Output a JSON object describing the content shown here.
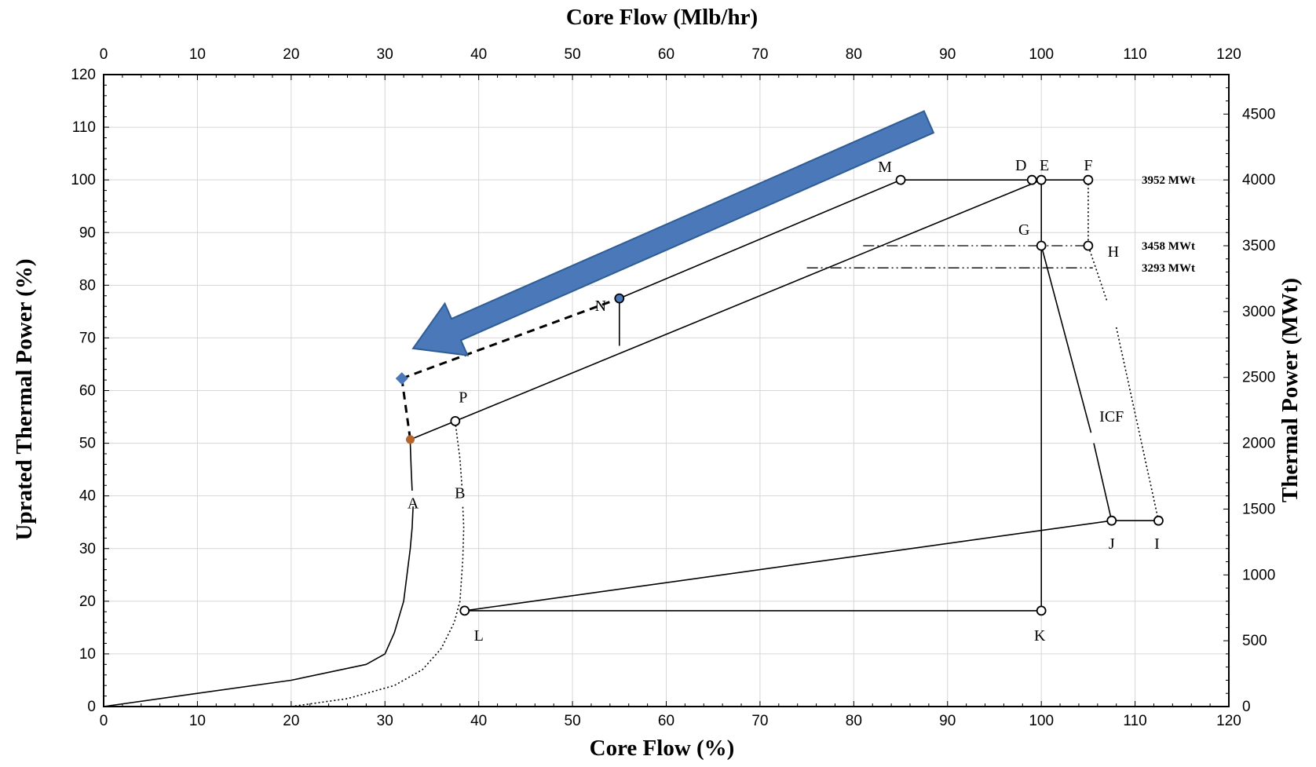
{
  "chart_data": {
    "type": "line",
    "xlabel": "Core Flow (%)",
    "x2label": "Core Flow (Mlb/hr)",
    "ylabel": "Uprated Thermal Power (%)",
    "y2label": "Thermal Power (MWt)",
    "xlim": [
      0,
      120
    ],
    "ylim": [
      0,
      120
    ],
    "x2lim": [
      0,
      120
    ],
    "y2lim": [
      0,
      4800
    ],
    "x_ticks": [
      "0",
      "10",
      "20",
      "30",
      "40",
      "50",
      "60",
      "70",
      "80",
      "90",
      "100",
      "110",
      "120"
    ],
    "y_ticks": [
      "0",
      "10",
      "20",
      "30",
      "40",
      "50",
      "60",
      "70",
      "80",
      "90",
      "100",
      "110",
      "120"
    ],
    "x2_ticks": [
      "0",
      "10",
      "20",
      "30",
      "40",
      "50",
      "60",
      "70",
      "80",
      "90",
      "100",
      "110",
      "120"
    ],
    "y2_ticks": [
      "0",
      "500",
      "1000",
      "1500",
      "2000",
      "2500",
      "3000",
      "3500",
      "4000",
      "4500"
    ],
    "grid": true,
    "series": [
      {
        "style": "solid",
        "points": [
          [
            0,
            0
          ],
          [
            10,
            2.5
          ],
          [
            20,
            5
          ],
          [
            28,
            8
          ],
          [
            30,
            10
          ],
          [
            31,
            14
          ],
          [
            32,
            20
          ],
          [
            32.7,
            30
          ],
          [
            32.9,
            34
          ],
          [
            33,
            38
          ]
        ]
      },
      {
        "style": "solid",
        "points": [
          [
            32.9,
            41
          ],
          [
            32.8,
            45
          ],
          [
            32.7,
            50
          ]
        ]
      },
      {
        "style": "dotted",
        "points": [
          [
            20,
            0
          ],
          [
            26,
            1.5
          ],
          [
            31,
            4
          ],
          [
            34,
            7
          ],
          [
            36,
            11
          ],
          [
            37.4,
            16
          ],
          [
            38,
            20
          ],
          [
            38.3,
            28
          ],
          [
            38.4,
            34
          ],
          [
            38.3,
            38
          ]
        ]
      },
      {
        "style": "dotted",
        "points": [
          [
            38.2,
            42
          ],
          [
            38,
            47
          ],
          [
            37.5,
            54
          ]
        ]
      },
      {
        "style": "solid",
        "points": [
          [
            32.7,
            50.7
          ],
          [
            37.5,
            54.2
          ],
          [
            100,
            100
          ]
        ]
      },
      {
        "style": "solid",
        "points": [
          [
            55,
            77.5
          ],
          [
            85,
            100
          ],
          [
            100,
            100
          ],
          [
            105,
            100
          ]
        ]
      },
      {
        "style": "solid",
        "points": [
          [
            55,
            77.5
          ],
          [
            55,
            68.5
          ]
        ]
      },
      {
        "style": "solid",
        "points": [
          [
            100,
            100
          ],
          [
            100,
            87.5
          ],
          [
            100,
            18.2
          ]
        ]
      },
      {
        "style": "solid",
        "points": [
          [
            38.5,
            18.2
          ],
          [
            100,
            18.2
          ]
        ]
      },
      {
        "style": "solid",
        "points": [
          [
            38.5,
            18.2
          ],
          [
            107.5,
            35.3
          ],
          [
            112.5,
            35.3
          ]
        ]
      },
      {
        "style": "solid",
        "points": [
          [
            100,
            87.5
          ],
          [
            105.3,
            52
          ]
        ]
      },
      {
        "style": "solid",
        "points": [
          [
            105.6,
            50
          ],
          [
            107.5,
            35.3
          ]
        ]
      },
      {
        "style": "dotted",
        "points": [
          [
            105,
            100
          ],
          [
            105,
            87.5
          ],
          [
            107,
            77
          ]
        ]
      },
      {
        "style": "dotted",
        "points": [
          [
            108,
            72
          ],
          [
            112.5,
            35.3
          ]
        ]
      },
      {
        "style": "dashdot",
        "points": [
          [
            81,
            87.5
          ],
          [
            105,
            87.5
          ]
        ]
      },
      {
        "style": "dashdot",
        "points": [
          [
            75,
            83.3
          ],
          [
            105.5,
            83.3
          ]
        ]
      },
      {
        "style": "dashed",
        "points": [
          [
            31.8,
            62.3
          ],
          [
            55,
            77.5
          ]
        ]
      },
      {
        "style": "dashed",
        "points": [
          [
            31.8,
            62.3
          ],
          [
            32.7,
            50.7
          ]
        ]
      }
    ],
    "markers": [
      {
        "label": "D",
        "x": 99,
        "y": 100,
        "shape": "open-circle"
      },
      {
        "label": "E",
        "x": 100,
        "y": 100,
        "shape": "open-circle"
      },
      {
        "label": "F",
        "x": 105,
        "y": 100,
        "shape": "open-circle"
      },
      {
        "label": "M",
        "x": 85,
        "y": 100,
        "shape": "open-circle"
      },
      {
        "label": "G",
        "x": 100,
        "y": 87.5,
        "shape": "open-circle"
      },
      {
        "label": "H",
        "x": 105,
        "y": 87.5,
        "shape": "open-circle"
      },
      {
        "label": "N",
        "x": 55,
        "y": 77.5,
        "shape": "blue-circle"
      },
      {
        "label": "P",
        "x": 37.5,
        "y": 54.2,
        "shape": "open-circle"
      },
      {
        "label": "J",
        "x": 107.5,
        "y": 35.3,
        "shape": "open-circle"
      },
      {
        "label": "I",
        "x": 112.5,
        "y": 35.3,
        "shape": "open-circle"
      },
      {
        "label": "L",
        "x": 38.5,
        "y": 18.2,
        "shape": "open-circle"
      },
      {
        "label": "K",
        "x": 100,
        "y": 18.2,
        "shape": "open-circle"
      },
      {
        "label": "",
        "x": 32.7,
        "y": 50.7,
        "shape": "orange-dot"
      },
      {
        "label": "",
        "x": 31.8,
        "y": 62.3,
        "shape": "blue-diamond"
      }
    ],
    "text_labels": [
      {
        "text": "A",
        "x": 33,
        "y": 38.5
      },
      {
        "text": "B",
        "x": 38,
        "y": 40.5
      },
      {
        "text": "ICF",
        "x": 107.5,
        "y": 55
      }
    ],
    "annotations": [
      {
        "text": "3952 MWt",
        "y": 100
      },
      {
        "text": "3458 MWt",
        "y": 87.5
      },
      {
        "text": "3293 MWt",
        "y": 83.3
      }
    ],
    "arrow": {
      "direction": "down-left",
      "from": [
        88,
        111
      ],
      "to": [
        33,
        68
      ]
    },
    "colors": {
      "arrow": "#4a78b8",
      "arrow_edge": "#2f5d95",
      "orange_dot": "#b5652c",
      "blue_marker": "#4a78b8"
    }
  }
}
